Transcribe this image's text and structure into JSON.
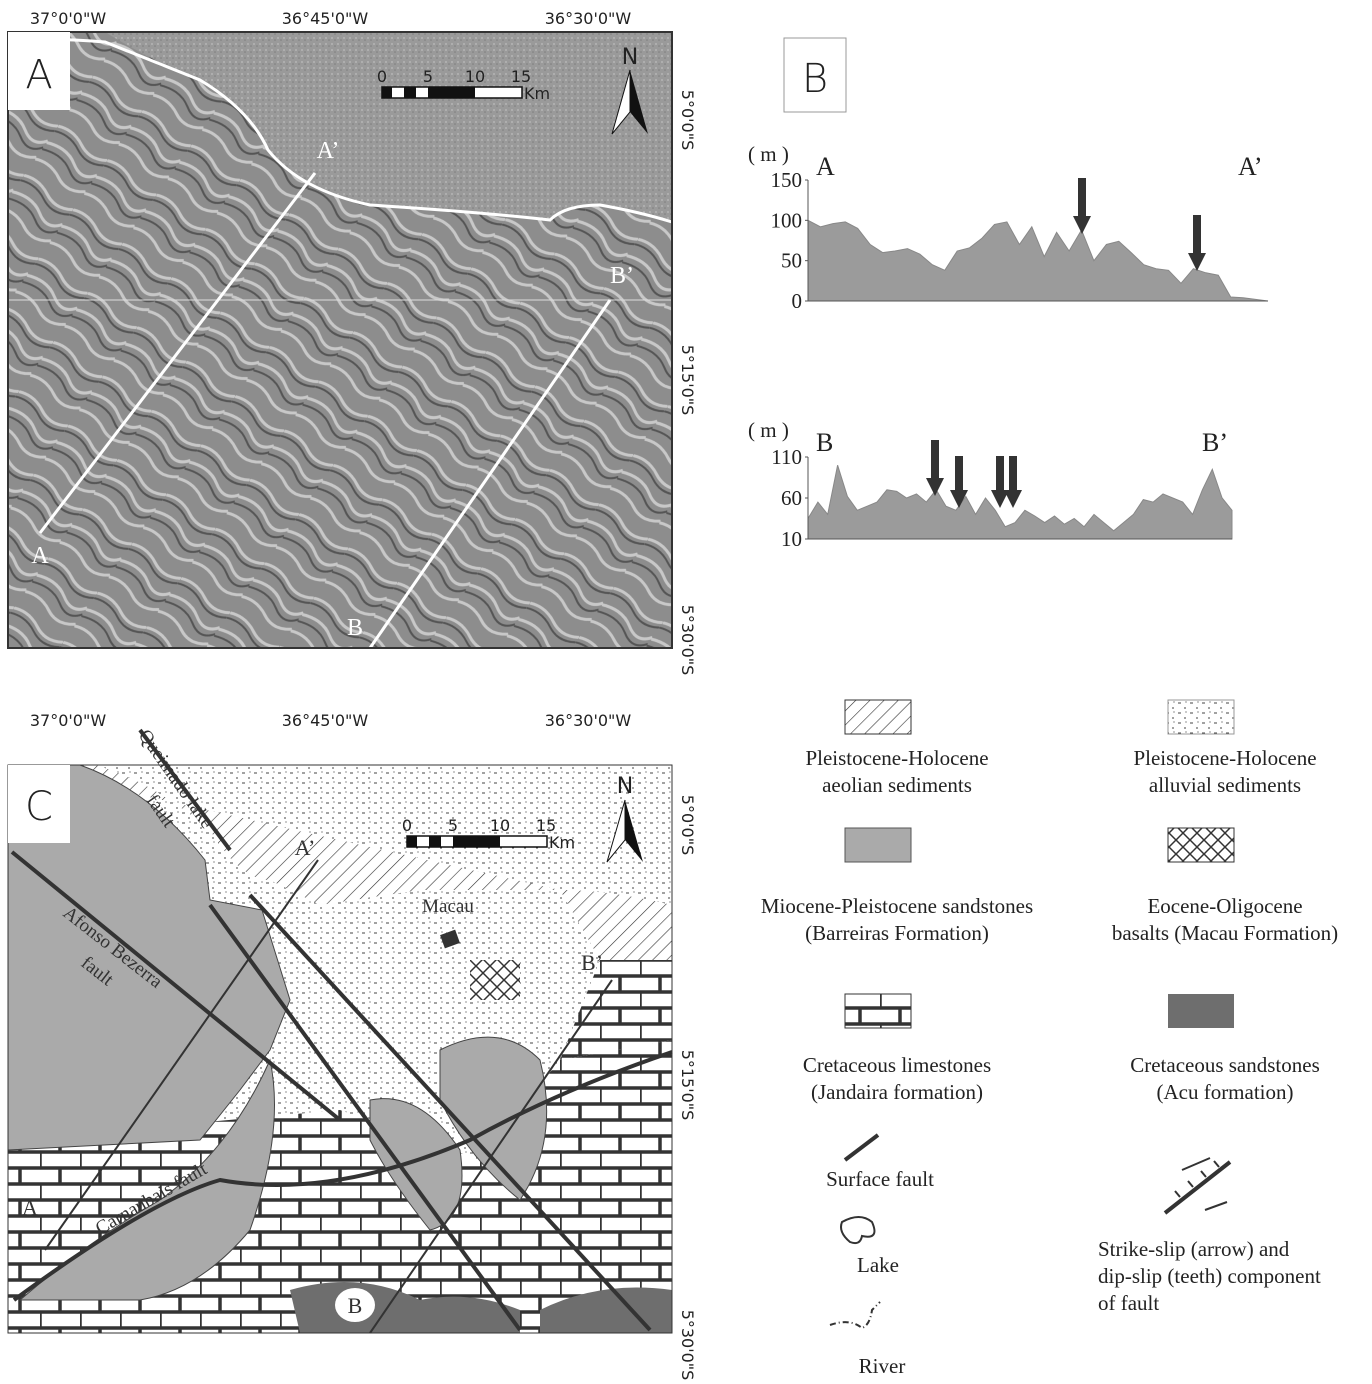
{
  "panel_a": {
    "label": "A",
    "lon_labels": [
      "37°0'0\"W",
      "36°45'0\"W",
      "36°30'0\"W"
    ],
    "lat_labels": [
      "5°0'0\"S",
      "5°15'0\"S",
      "5°30'0\"S"
    ],
    "scale_ticks": [
      0,
      5,
      10,
      15
    ],
    "scale_unit": "Km",
    "north": "N",
    "section_labels": [
      "A",
      "A’",
      "B",
      "B’"
    ]
  },
  "panel_b": {
    "label": "B",
    "profiles": [
      {
        "type": "area",
        "unit": "( m )",
        "start": "A",
        "end": "A’",
        "ylim": [
          0,
          150
        ],
        "yticks": [
          0,
          50,
          100,
          150
        ],
        "values": [
          100,
          92,
          96,
          98,
          90,
          70,
          60,
          62,
          65,
          58,
          45,
          38,
          62,
          66,
          78,
          95,
          98,
          70,
          92,
          55,
          85,
          62,
          88,
          50,
          70,
          74,
          60,
          45,
          40,
          38,
          22,
          40,
          35,
          32,
          5,
          4,
          2,
          0
        ]
      },
      {
        "type": "area",
        "unit": "( m )",
        "start": "B",
        "end": "B’",
        "ylim": [
          10,
          110
        ],
        "yticks": [
          10,
          60,
          110
        ],
        "values": [
          35,
          55,
          40,
          100,
          62,
          45,
          50,
          55,
          70,
          68,
          60,
          65,
          55,
          70,
          50,
          45,
          62,
          40,
          60,
          45,
          25,
          30,
          45,
          38,
          30,
          38,
          28,
          35,
          25,
          40,
          30,
          20,
          30,
          40,
          58,
          55,
          65,
          60,
          55,
          40,
          70,
          95,
          60,
          45
        ]
      }
    ]
  },
  "panel_c": {
    "label": "C",
    "lon_labels": [
      "37°0'0\"W",
      "36°45'0\"W",
      "36°30'0\"W"
    ],
    "lat_labels": [
      "5°0'0\"S",
      "5°15'0\"S",
      "5°30'0\"S"
    ],
    "scale_ticks": [
      0,
      5,
      10,
      15
    ],
    "scale_unit": "Km",
    "north": "N",
    "section_labels": [
      "A",
      "A’",
      "B",
      "B’"
    ],
    "place": "Macau",
    "faults": [
      "Queimado lake",
      "fault",
      "Afonso Bezerra",
      "fault",
      "Carnaubais  fault"
    ]
  },
  "legend": [
    {
      "lines": [
        "Pleistocene-Holocene",
        "aeolian sediments"
      ]
    },
    {
      "lines": [
        "Pleistocene-Holocene",
        "alluvial sediments"
      ]
    },
    {
      "lines": [
        "Miocene-Pleistocene sandstones",
        "(Barreiras Formation)"
      ]
    },
    {
      "lines": [
        "Eocene-Oligocene",
        "basalts (Macau Formation)"
      ]
    },
    {
      "lines": [
        "Cretaceous limestones",
        "(Jandaira formation)"
      ]
    },
    {
      "lines": [
        "Cretaceous sandstones",
        "(Acu formation)"
      ]
    },
    {
      "lines": [
        "Surface fault"
      ]
    },
    {
      "lines": [
        "Strike-slip (arrow) and",
        "dip-slip (teeth) component",
        "of fault"
      ]
    },
    {
      "lines": [
        "Lake"
      ]
    },
    {
      "lines": [
        "River"
      ]
    }
  ]
}
